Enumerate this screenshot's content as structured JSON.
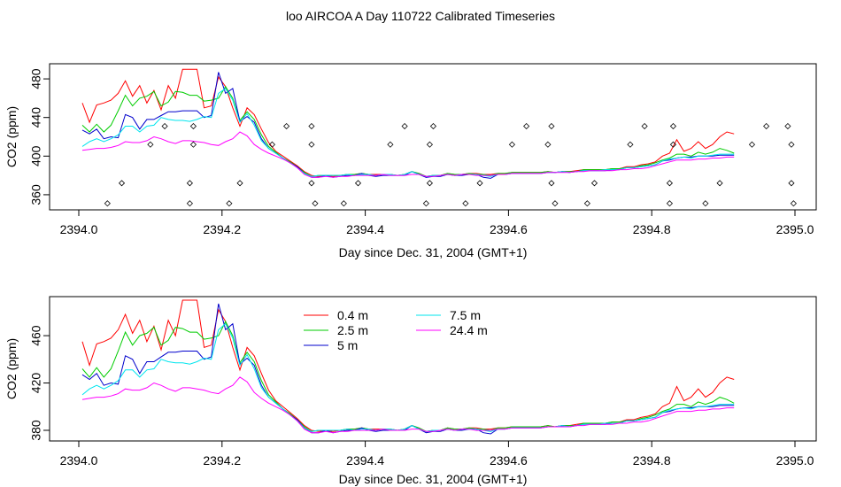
{
  "title": "loo AIRCOA A  Day 110722  Calibrated Timeseries",
  "colors": {
    "0.4 m": "#ff0000",
    "2.5 m": "#00cc00",
    "5 m": "#0000cc",
    "7.5 m": "#00e5ee",
    "24.4 m": "#ff00ff",
    "flags": "#000000"
  },
  "chart_data": [
    {
      "type": "line",
      "xlabel": "Day since Dec. 31, 2004 (GMT+1)",
      "ylabel": "CO2 (ppm)",
      "xlim": [
        2394.0,
        2395.0
      ],
      "ylim": [
        348,
        492
      ],
      "xticks": [
        2394.0,
        2394.2,
        2394.4,
        2394.6,
        2394.8,
        2395.0
      ],
      "xtick_labels": [
        "2394.0",
        "2394.2",
        "2394.4",
        "2394.6",
        "2394.8",
        "2395.0"
      ],
      "yticks": [
        360,
        400,
        440,
        480
      ],
      "ytick_labels": [
        "360",
        "400",
        "440",
        "480"
      ],
      "legend": false,
      "x_start": 2394.005,
      "x_step": 0.01,
      "series": [
        {
          "name": "0.4 m",
          "values": [
            455,
            435,
            453,
            455,
            458,
            465,
            478,
            462,
            473,
            455,
            468,
            448,
            473,
            460,
            490,
            490,
            490,
            450,
            452,
            482,
            472,
            450,
            431,
            450,
            443,
            428,
            414,
            405,
            400,
            395,
            390,
            384,
            380,
            379,
            380,
            379,
            380,
            381,
            381,
            382,
            381,
            381,
            381,
            381,
            380,
            381,
            384,
            382,
            379,
            380,
            380,
            382,
            381,
            381,
            382,
            382,
            381,
            381,
            382,
            382,
            383,
            383,
            383,
            383,
            383,
            384,
            383,
            384,
            384,
            385,
            386,
            386,
            386,
            386,
            387,
            387,
            389,
            389,
            391,
            392,
            394,
            400,
            403,
            417,
            405,
            408,
            415,
            408,
            412,
            420,
            425,
            423
          ]
        },
        {
          "name": "2.5 m",
          "values": [
            432,
            425,
            433,
            425,
            432,
            447,
            463,
            452,
            460,
            462,
            467,
            452,
            456,
            467,
            466,
            463,
            463,
            457,
            458,
            460,
            472,
            460,
            437,
            446,
            438,
            422,
            410,
            404,
            398,
            394,
            389,
            383,
            379,
            380,
            380,
            380,
            380,
            381,
            381,
            382,
            381,
            380,
            381,
            381,
            380,
            381,
            384,
            382,
            379,
            380,
            380,
            382,
            381,
            381,
            382,
            381,
            381,
            380,
            382,
            382,
            383,
            383,
            383,
            383,
            383,
            384,
            383,
            384,
            384,
            384,
            386,
            386,
            386,
            386,
            387,
            387,
            388,
            388,
            390,
            391,
            393,
            396,
            398,
            402,
            402,
            400,
            404,
            402,
            404,
            408,
            406,
            403
          ]
        },
        {
          "name": "5 m",
          "values": [
            427,
            423,
            428,
            418,
            420,
            419,
            443,
            440,
            428,
            438,
            438,
            442,
            446,
            446,
            447,
            447,
            447,
            440,
            442,
            487,
            465,
            470,
            436,
            441,
            435,
            418,
            408,
            403,
            398,
            393,
            389,
            382,
            378,
            378,
            380,
            378,
            379,
            380,
            380,
            382,
            380,
            379,
            380,
            380,
            380,
            380,
            384,
            381,
            378,
            379,
            379,
            381,
            380,
            380,
            381,
            381,
            378,
            377,
            381,
            381,
            382,
            382,
            382,
            382,
            382,
            383,
            383,
            384,
            383,
            384,
            385,
            385,
            385,
            385,
            386,
            386,
            388,
            388,
            389,
            390,
            391,
            395,
            396,
            398,
            399,
            399,
            400,
            400,
            400,
            401,
            401,
            401
          ]
        },
        {
          "name": "7.5 m",
          "values": [
            410,
            415,
            418,
            415,
            418,
            422,
            431,
            431,
            425,
            431,
            432,
            440,
            438,
            437,
            437,
            436,
            438,
            441,
            440,
            465,
            470,
            458,
            435,
            444,
            432,
            416,
            408,
            403,
            398,
            393,
            388,
            382,
            379,
            380,
            380,
            380,
            380,
            381,
            380,
            381,
            381,
            380,
            381,
            381,
            380,
            381,
            384,
            381,
            379,
            380,
            380,
            381,
            380,
            381,
            381,
            381,
            380,
            379,
            381,
            381,
            382,
            382,
            382,
            382,
            382,
            383,
            383,
            384,
            383,
            384,
            385,
            385,
            385,
            386,
            386,
            386,
            388,
            388,
            389,
            390,
            391,
            395,
            397,
            398,
            399,
            398,
            400,
            400,
            401,
            402,
            402,
            402
          ]
        },
        {
          "name": "24.4 m",
          "values": [
            406,
            407,
            408,
            408,
            409,
            411,
            415,
            414,
            414,
            416,
            420,
            418,
            415,
            413,
            416,
            416,
            415,
            414,
            412,
            411,
            415,
            418,
            425,
            421,
            412,
            407,
            403,
            400,
            397,
            393,
            388,
            381,
            378,
            378,
            379,
            378,
            379,
            379,
            380,
            380,
            380,
            380,
            381,
            380,
            380,
            380,
            381,
            381,
            379,
            379,
            380,
            381,
            380,
            381,
            381,
            380,
            380,
            380,
            381,
            381,
            382,
            382,
            382,
            382,
            382,
            383,
            383,
            383,
            383,
            384,
            384,
            385,
            385,
            385,
            385,
            386,
            386,
            387,
            387,
            388,
            390,
            392,
            394,
            396,
            396,
            396,
            397,
            397,
            398,
            398,
            399,
            399
          ]
        }
      ],
      "flags": {
        "name": "flag",
        "x": [
          2394.04,
          2394.06,
          2394.1,
          2394.12,
          2394.155,
          2394.155,
          2394.16,
          2394.16,
          2394.21,
          2394.225,
          2394.27,
          2394.29,
          2394.325,
          2394.325,
          2394.33,
          2394.325,
          2394.37,
          2394.39,
          2394.435,
          2394.455,
          2394.485,
          2394.49,
          2394.49,
          2394.495,
          2394.54,
          2394.56,
          2394.605,
          2394.625,
          2394.655,
          2394.66,
          2394.66,
          2394.665,
          2394.71,
          2394.72,
          2394.77,
          2394.79,
          2394.825,
          2394.825,
          2394.83,
          2394.83,
          2394.875,
          2394.895,
          2394.94,
          2394.96,
          2394.99,
          2394.995,
          2394.995,
          2394.998
        ],
        "y": [
          351,
          372,
          412,
          431,
          351,
          372,
          412,
          431,
          351,
          372,
          412,
          431,
          372,
          412,
          351,
          431,
          351,
          372,
          412,
          431,
          351,
          372,
          412,
          431,
          351,
          372,
          412,
          431,
          412,
          372,
          431,
          351,
          351,
          372,
          412,
          431,
          351,
          372,
          412,
          431,
          351,
          372,
          412,
          431,
          431,
          412,
          372,
          351
        ]
      }
    },
    {
      "type": "line",
      "xlabel": "Day since Dec. 31, 2004 (GMT+1)",
      "ylabel": "CO2 (ppm)",
      "xlim": [
        2394.0,
        2395.0
      ],
      "ylim": [
        374,
        490
      ],
      "xticks": [
        2394.0,
        2394.2,
        2394.4,
        2394.6,
        2394.8,
        2395.0
      ],
      "xtick_labels": [
        "2394.0",
        "2394.2",
        "2394.4",
        "2394.6",
        "2394.8",
        "2395.0"
      ],
      "yticks": [
        380,
        420,
        460
      ],
      "ytick_labels": [
        "380",
        "420",
        "460"
      ],
      "legend": true,
      "legend_position": "top-center",
      "x_start": 2394.005,
      "x_step": 0.01,
      "series": [
        {
          "name": "0.4 m",
          "values": [
            455,
            435,
            453,
            455,
            458,
            465,
            478,
            462,
            473,
            455,
            468,
            448,
            473,
            460,
            490,
            490,
            490,
            450,
            452,
            482,
            472,
            450,
            431,
            450,
            443,
            428,
            414,
            405,
            400,
            395,
            390,
            384,
            380,
            379,
            380,
            379,
            380,
            381,
            381,
            382,
            381,
            381,
            381,
            381,
            380,
            381,
            384,
            382,
            379,
            380,
            380,
            382,
            381,
            381,
            382,
            382,
            381,
            381,
            382,
            382,
            383,
            383,
            383,
            383,
            383,
            384,
            383,
            384,
            384,
            385,
            386,
            386,
            386,
            386,
            387,
            387,
            389,
            389,
            391,
            392,
            394,
            400,
            403,
            417,
            405,
            408,
            415,
            408,
            412,
            420,
            425,
            423
          ]
        },
        {
          "name": "2.5 m",
          "values": [
            432,
            425,
            433,
            425,
            432,
            447,
            463,
            452,
            460,
            462,
            467,
            452,
            456,
            467,
            466,
            463,
            463,
            457,
            458,
            460,
            472,
            460,
            437,
            446,
            438,
            422,
            410,
            404,
            398,
            394,
            389,
            383,
            379,
            380,
            380,
            380,
            380,
            381,
            381,
            382,
            381,
            380,
            381,
            381,
            380,
            381,
            384,
            382,
            379,
            380,
            380,
            382,
            381,
            381,
            382,
            381,
            381,
            380,
            382,
            382,
            383,
            383,
            383,
            383,
            383,
            384,
            383,
            384,
            384,
            384,
            386,
            386,
            386,
            386,
            387,
            387,
            388,
            388,
            390,
            391,
            393,
            396,
            398,
            402,
            402,
            400,
            404,
            402,
            404,
            408,
            406,
            403
          ]
        },
        {
          "name": "5 m",
          "values": [
            427,
            423,
            428,
            418,
            420,
            419,
            443,
            440,
            428,
            438,
            438,
            442,
            446,
            446,
            447,
            447,
            447,
            440,
            442,
            487,
            465,
            470,
            436,
            441,
            435,
            418,
            408,
            403,
            398,
            393,
            389,
            382,
            378,
            378,
            380,
            378,
            379,
            380,
            380,
            382,
            380,
            379,
            380,
            380,
            380,
            380,
            384,
            381,
            378,
            379,
            379,
            381,
            380,
            380,
            381,
            381,
            378,
            377,
            381,
            381,
            382,
            382,
            382,
            382,
            382,
            383,
            383,
            384,
            383,
            384,
            385,
            385,
            385,
            385,
            386,
            386,
            388,
            388,
            389,
            390,
            391,
            395,
            396,
            398,
            399,
            399,
            400,
            400,
            400,
            401,
            401,
            401
          ]
        },
        {
          "name": "7.5 m",
          "values": [
            410,
            415,
            418,
            415,
            418,
            422,
            431,
            431,
            425,
            431,
            432,
            440,
            438,
            437,
            437,
            436,
            438,
            441,
            440,
            465,
            470,
            458,
            435,
            444,
            432,
            416,
            408,
            403,
            398,
            393,
            388,
            382,
            379,
            380,
            380,
            380,
            380,
            381,
            380,
            381,
            381,
            380,
            381,
            381,
            380,
            381,
            384,
            381,
            379,
            380,
            380,
            381,
            380,
            381,
            381,
            381,
            380,
            379,
            381,
            381,
            382,
            382,
            382,
            382,
            382,
            383,
            383,
            384,
            383,
            384,
            385,
            385,
            385,
            386,
            386,
            386,
            388,
            388,
            389,
            390,
            391,
            395,
            397,
            398,
            399,
            398,
            400,
            400,
            401,
            402,
            402,
            402
          ]
        },
        {
          "name": "24.4 m",
          "values": [
            406,
            407,
            408,
            408,
            409,
            411,
            415,
            414,
            414,
            416,
            420,
            418,
            415,
            413,
            416,
            416,
            415,
            414,
            412,
            411,
            415,
            418,
            425,
            421,
            412,
            407,
            403,
            400,
            397,
            393,
            388,
            381,
            378,
            378,
            379,
            378,
            379,
            379,
            380,
            380,
            380,
            380,
            381,
            380,
            380,
            380,
            381,
            381,
            379,
            379,
            380,
            381,
            380,
            381,
            381,
            380,
            380,
            380,
            381,
            381,
            382,
            382,
            382,
            382,
            382,
            383,
            383,
            383,
            383,
            384,
            384,
            385,
            385,
            385,
            385,
            386,
            386,
            387,
            387,
            388,
            390,
            392,
            394,
            396,
            396,
            396,
            397,
            397,
            398,
            398,
            399,
            399
          ]
        }
      ]
    }
  ]
}
